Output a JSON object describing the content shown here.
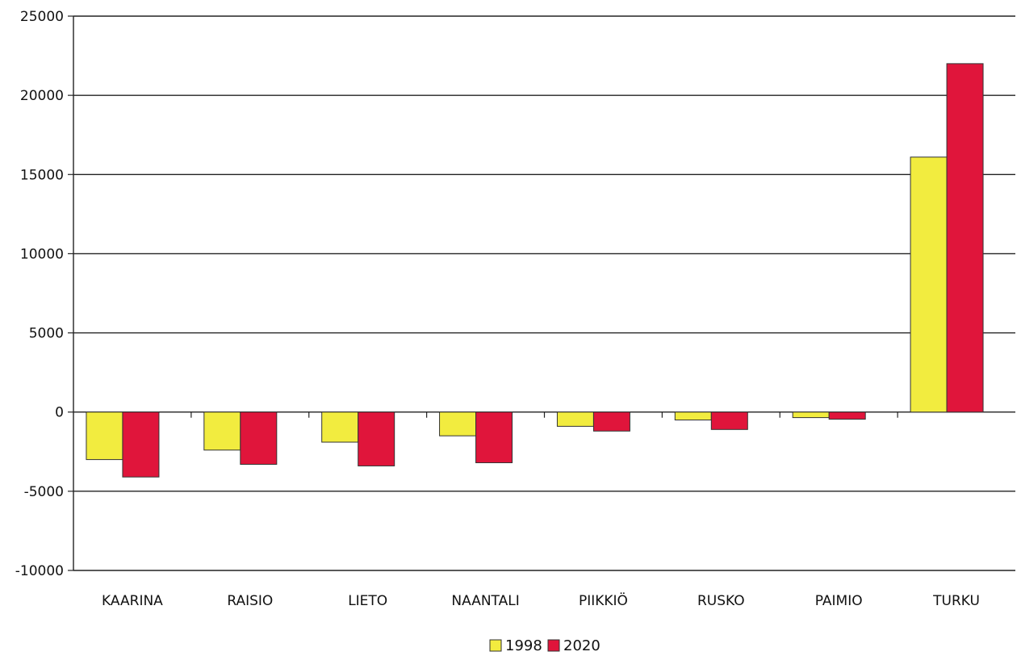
{
  "chart_data": {
    "type": "bar",
    "title": "",
    "xlabel": "",
    "ylabel": "",
    "categories": [
      "KAARINA",
      "RAISIO",
      "LIETO",
      "NAANTALI",
      "PIIKKIÖ",
      "RUSKO",
      "PAIMIO",
      "TURKU"
    ],
    "series": [
      {
        "name": "1998",
        "color": "#f2ec3f",
        "values": [
          -3000,
          -2400,
          -1900,
          -1500,
          -900,
          -500,
          -350,
          16100
        ]
      },
      {
        "name": "2020",
        "color": "#e0153b",
        "values": [
          -4100,
          -3300,
          -3400,
          -3200,
          -1200,
          -1100,
          -450,
          22000
        ]
      }
    ],
    "ylim": [
      -10000,
      25000
    ],
    "yticks": [
      "25000",
      "20000",
      "15000",
      "10000",
      "5000",
      "0",
      "-5000",
      "-10000"
    ],
    "ytick_values": [
      25000,
      20000,
      15000,
      10000,
      5000,
      0,
      -5000,
      -10000
    ],
    "grid": true,
    "legend_position": "bottom-center"
  }
}
